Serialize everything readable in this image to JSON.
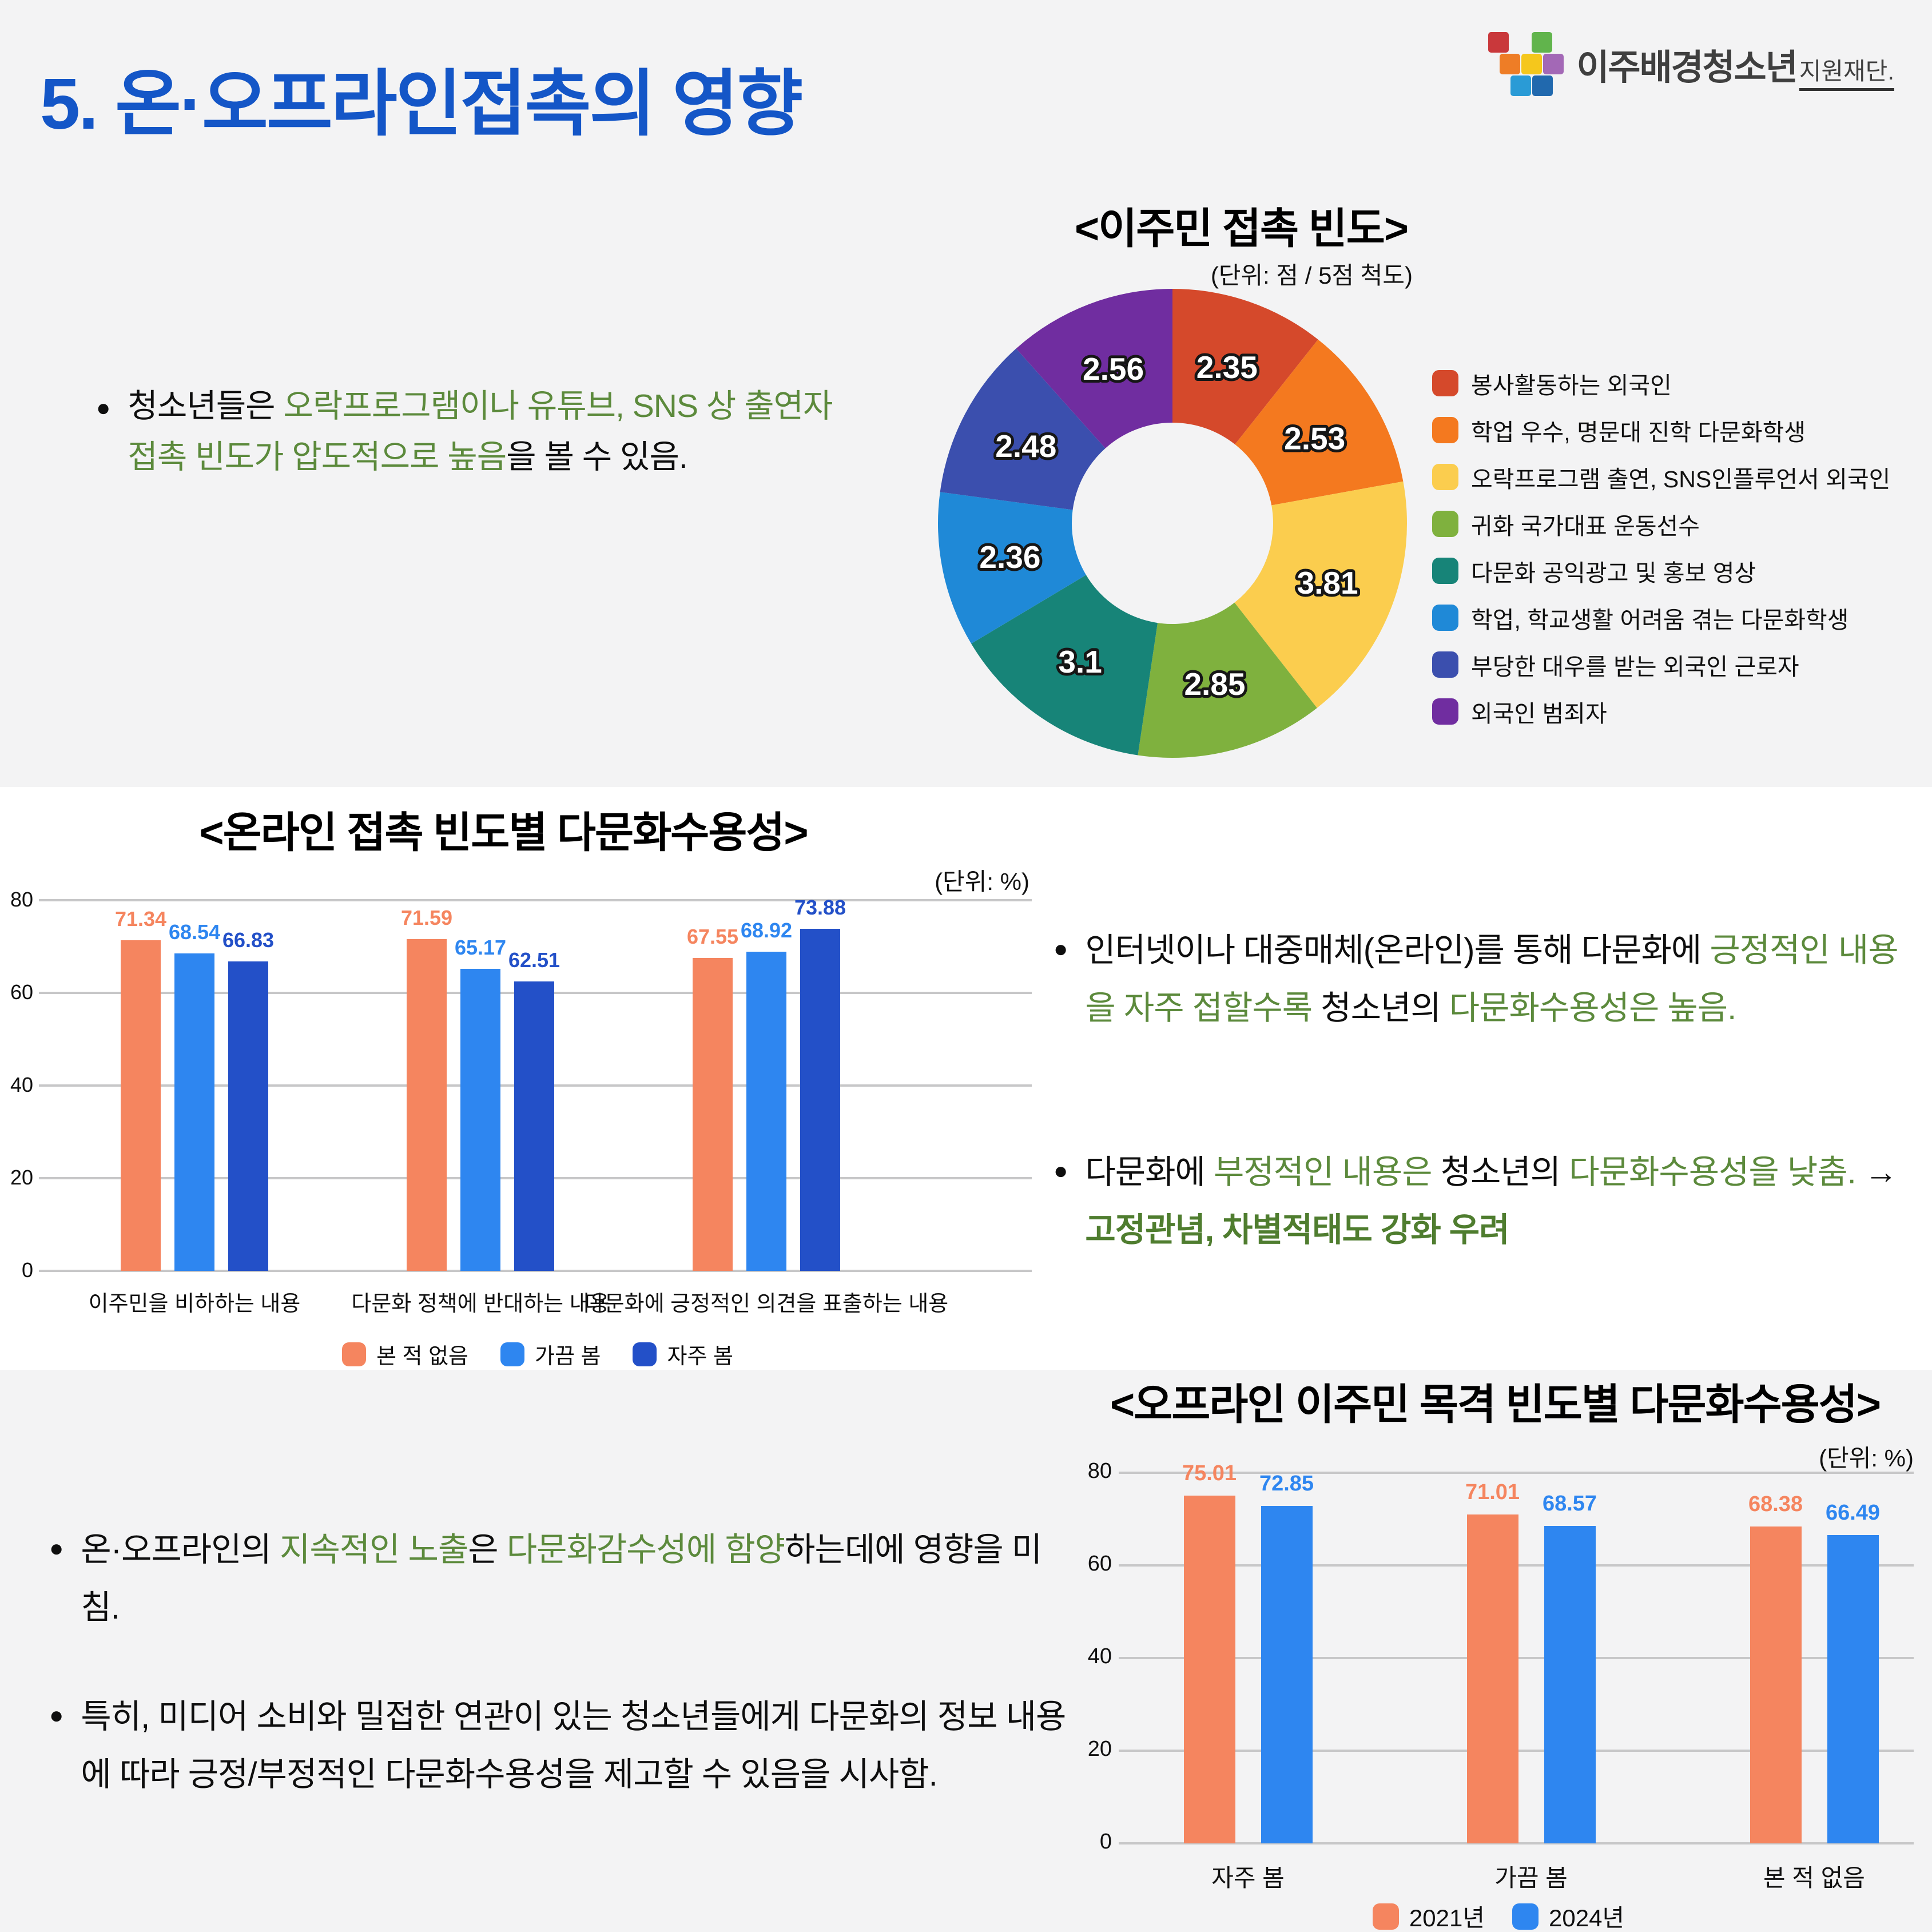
{
  "page": {
    "title": "5. 온·오프라인접촉의 영향",
    "logo": {
      "main": "이주배경청소년",
      "sub": "지원재단."
    },
    "colors": {
      "accent_blue": "#1456c7",
      "green_text": "#5c8a3c",
      "band_gray": "#f3f3f4",
      "band_white": "#ffffff"
    }
  },
  "notes": {
    "donut_note": {
      "segments": [
        {
          "t": "청소년들은 ",
          "c": "k"
        },
        {
          "t": "오락프로그램이나 유튜브, SNS 상 출연자 접촉 빈도가 압도적으로 높음",
          "c": "g"
        },
        {
          "t": "을 볼 수 있음.",
          "c": "k"
        }
      ]
    },
    "online_note_1": {
      "segments": [
        {
          "t": "인터넷이나 대중매체(온라인)를 통해 다문화에 ",
          "c": "k"
        },
        {
          "t": "긍정적인 내용을 자주 접할수록",
          "c": "g"
        },
        {
          "t": " 청소년의 ",
          "c": "k"
        },
        {
          "t": "다문화수용성은 높음.",
          "c": "g"
        }
      ]
    },
    "online_note_2": {
      "segments": [
        {
          "t": "다문화에 ",
          "c": "k"
        },
        {
          "t": "부정적인 내용은",
          "c": "g"
        },
        {
          "t": " 청소년의 ",
          "c": "k"
        },
        {
          "t": "다문화수용성을 낮춤.",
          "c": "g"
        },
        {
          "t": " → ",
          "c": "k"
        },
        {
          "t": "고정관념, 차별적태도 강화 우려",
          "c": "gb"
        }
      ]
    },
    "offline_note_1": {
      "segments": [
        {
          "t": "온·오프라인의 ",
          "c": "k"
        },
        {
          "t": "지속적인 노출",
          "c": "g"
        },
        {
          "t": "은 ",
          "c": "k"
        },
        {
          "t": "다문화감수성에 함양",
          "c": "g"
        },
        {
          "t": "하는데에 영향을 미침.",
          "c": "k"
        }
      ]
    },
    "offline_note_2": {
      "segments": [
        {
          "t": "특히, 미디어 소비와 밀접한 연관이 있는 청소년들에게 다문화의 정보 내용에 따라 긍정/부정적인 다문화수용성을 제고할 수 있음을 시사함.",
          "c": "k"
        }
      ]
    }
  },
  "chart_data": [
    {
      "type": "pie",
      "donut": true,
      "title": "<이주민 접촉 빈도>",
      "unit_label": "(단위: 점 / 5점 척도)",
      "start_angle": "top",
      "direction": "clockwise",
      "legend_position": "right",
      "labels": [
        "봉사활동하는 외국인",
        "학업 우수, 명문대 진학 다문화학생",
        "오락프로그램 출연, SNS인플루언서 외국인",
        "귀화 국가대표 운동선수",
        "다문화 공익광고 및 홍보 영상",
        "학업, 학교생활 어려움 겪는 다문화학생",
        "부당한 대우를 받는 외국인 근로자",
        "외국인 범죄자"
      ],
      "values": [
        2.35,
        2.53,
        3.81,
        2.85,
        3.1,
        2.36,
        2.48,
        2.56
      ],
      "colors": [
        "#d5492b",
        "#f4791f",
        "#fbcd4e",
        "#7fb13e",
        "#178478",
        "#1f89d7",
        "#3b4fae",
        "#702da0"
      ]
    },
    {
      "type": "bar",
      "title": "<온라인 접촉 빈도별 다문화수용성>",
      "unit_label": "(단위: %)",
      "categories": [
        "이주민을 비하하는 내용",
        "다문화 정책에 반대하는 내용",
        "다문화에 긍정적인 의견을 표출하는 내용"
      ],
      "series": [
        {
          "name": "본 적 없음",
          "color": "#f5855f",
          "values": [
            71.34,
            71.59,
            67.55
          ]
        },
        {
          "name": "가끔 봄",
          "color": "#2e86f0",
          "values": [
            68.54,
            65.17,
            68.92
          ]
        },
        {
          "name": "자주 봄",
          "color": "#2350c8",
          "values": [
            66.83,
            62.51,
            73.88
          ]
        }
      ],
      "ylim": [
        0,
        80
      ],
      "yticks": [
        0,
        20,
        40,
        60,
        80
      ],
      "grid": true,
      "legend_position": "bottom"
    },
    {
      "type": "bar",
      "title": "<오프라인 이주민 목격 빈도별 다문화수용성>",
      "unit_label": "(단위: %)",
      "categories": [
        "자주 봄",
        "가끔 봄",
        "본 적 없음"
      ],
      "series": [
        {
          "name": "2021년",
          "color": "#f5855f",
          "values": [
            75.01,
            71.01,
            68.38
          ]
        },
        {
          "name": "2024년",
          "color": "#2e86f0",
          "values": [
            72.85,
            68.57,
            66.49
          ]
        }
      ],
      "ylim": [
        0,
        80
      ],
      "yticks": [
        0,
        20,
        40,
        60,
        80
      ],
      "grid": true,
      "legend_position": "bottom"
    }
  ]
}
